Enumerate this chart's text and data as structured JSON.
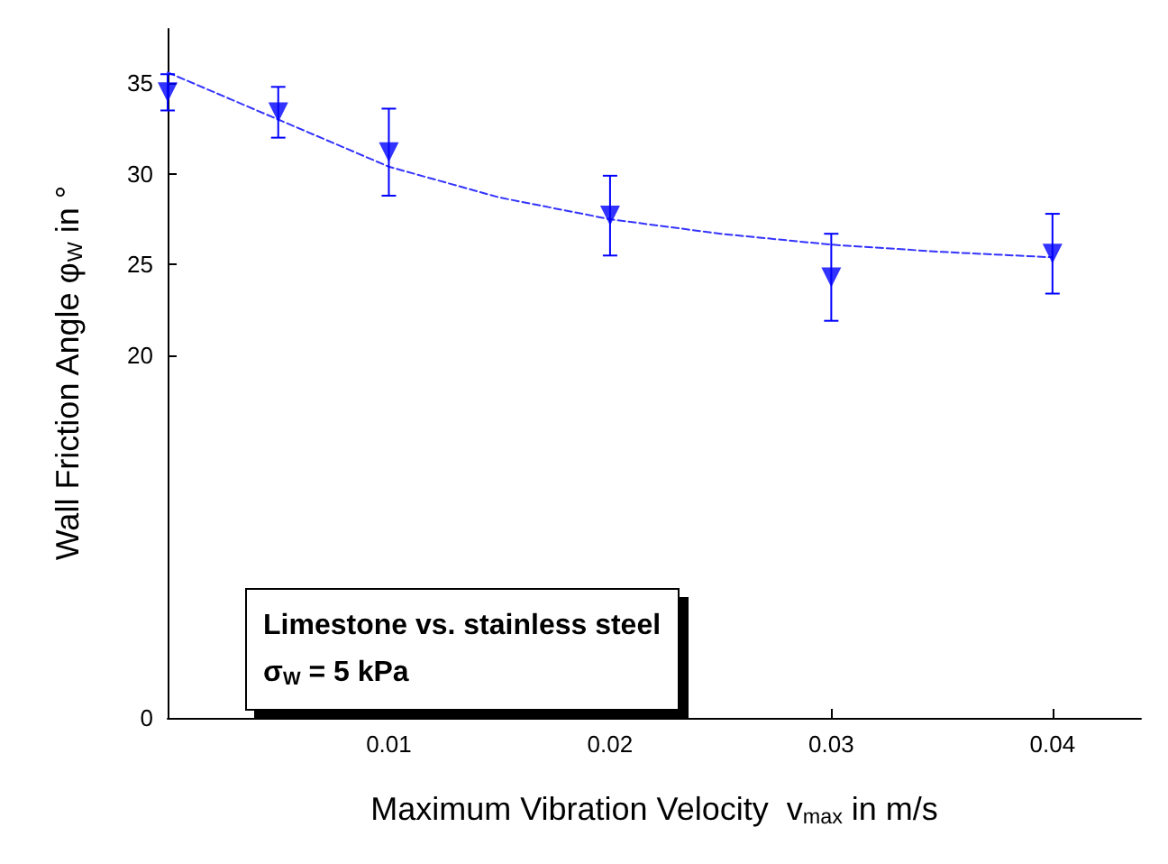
{
  "chart_data": {
    "type": "scatter",
    "xlabel": "Maximum Vibration Velocity  v$_{max}$ in m/s",
    "ylabel": "Wall Friction Angle φ$_{W}$ in °",
    "xlim": [
      0,
      0.044
    ],
    "xticks": [
      0.01,
      0.02,
      0.03,
      0.04
    ],
    "ylim": [
      0,
      38
    ],
    "yticks": [
      0,
      20,
      25,
      30,
      35
    ],
    "series": [
      {
        "color": "#0000ff",
        "marker": "triangle",
        "x": [
          0,
          0.005,
          0.01,
          0.02,
          0.03,
          0.04
        ],
        "values": [
          34.5,
          33.4,
          31.2,
          27.7,
          24.3,
          25.6
        ],
        "errors": [
          1.0,
          1.4,
          2.4,
          2.2,
          2.4,
          2.2
        ]
      },
      {
        "type": "line",
        "color": "#3333ff",
        "line_style": "dashed",
        "marker": "none",
        "x": [
          0,
          0.005,
          0.01,
          0.015,
          0.02,
          0.025,
          0.03,
          0.035,
          0.04
        ],
        "values": [
          35.6,
          33.0,
          30.4,
          28.7,
          27.5,
          26.7,
          26.1,
          25.7,
          25.4
        ]
      }
    ],
    "annotations": [
      "Limestone vs. stainless steel",
      "σ$_{W}$ = 5 kPa"
    ]
  }
}
